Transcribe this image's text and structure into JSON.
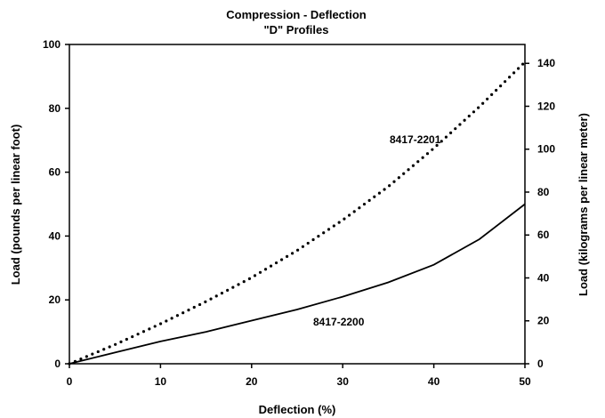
{
  "chart_data": {
    "type": "line",
    "title": "Compression - Deflection",
    "subtitle": "\"D\" Profiles",
    "xlabel": "Deflection (%)",
    "ylabel": "Load (pounds per linear foot)",
    "y2label": "Load (kilograms per linear meter)",
    "xlim": [
      0,
      50
    ],
    "ylim": [
      0,
      100
    ],
    "y2lim": [
      0,
      148.8
    ],
    "xticks": [
      "0",
      "10",
      "20",
      "30",
      "40",
      "50"
    ],
    "yticks": [
      "0",
      "20",
      "40",
      "60",
      "80",
      "100"
    ],
    "y2ticks": [
      "0",
      "20",
      "40",
      "60",
      "80",
      "100",
      "120",
      "140"
    ],
    "grid": false,
    "legend": "none",
    "series": [
      {
        "name": "8417-2201",
        "style": "dotted",
        "x": [
          0,
          5,
          10,
          15,
          20,
          25,
          30,
          35,
          40,
          45,
          50
        ],
        "y": [
          0,
          6,
          12.5,
          19.5,
          27,
          35.5,
          45,
          55.5,
          67.5,
          80.5,
          94.5
        ]
      },
      {
        "name": "8417-2200",
        "style": "solid",
        "x": [
          0,
          5,
          10,
          15,
          20,
          25,
          30,
          35,
          40,
          45,
          50
        ],
        "y": [
          0,
          3.5,
          7,
          10,
          13.5,
          17,
          21,
          25.5,
          31,
          39,
          50
        ]
      }
    ]
  }
}
